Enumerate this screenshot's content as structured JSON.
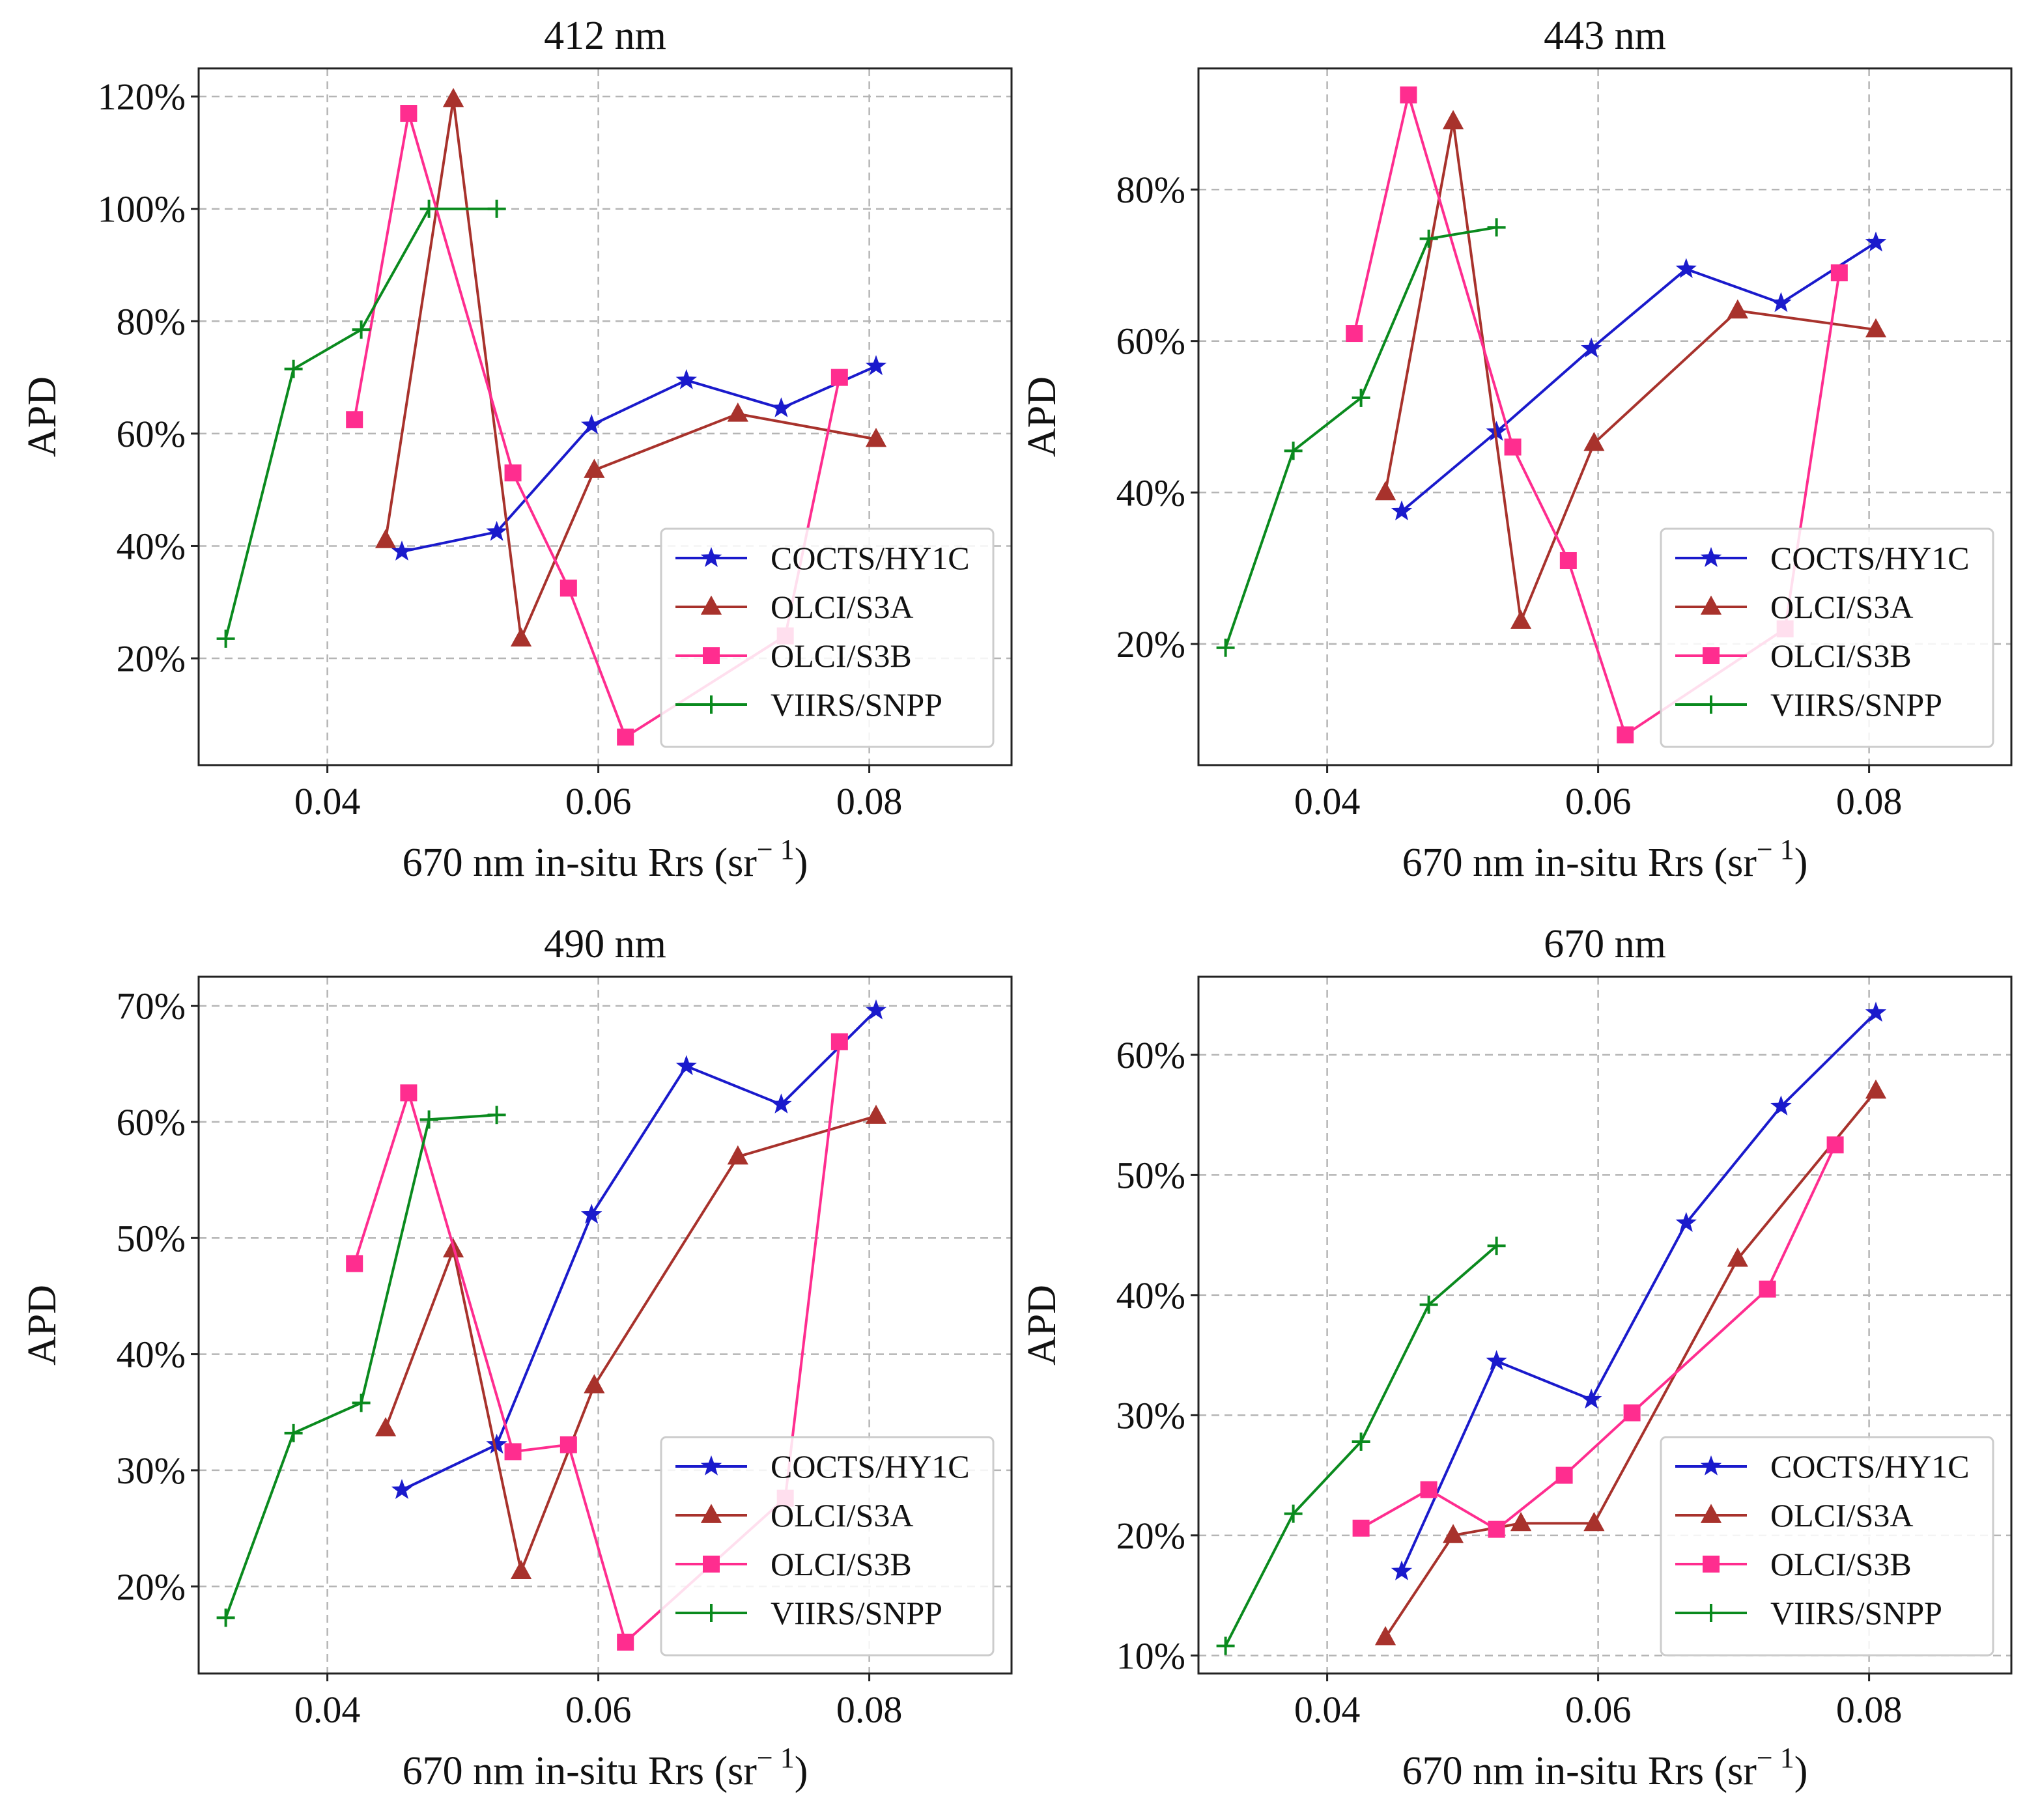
{
  "figure": {
    "shared": {
      "ylabel": "APD",
      "xlabel": "670 nm in-situ Rrs (sr",
      "xlabel_sup": "− 1",
      "xlabel_end": ")"
    }
  },
  "legend_order": [
    "COCTS/HY1C",
    "OLCI/S3A",
    "OLCI/S3B",
    "VIIRS/SNPP"
  ],
  "colors": {
    "COCTS/HY1C": "#1a1acc",
    "OLCI/S3A": "#a8322c",
    "OLCI/S3B": "#ff2d8f",
    "VIIRS/SNPP": "#0a8a1e"
  },
  "markers": {
    "COCTS/HY1C": "star",
    "OLCI/S3A": "triangle",
    "OLCI/S3B": "square",
    "VIIRS/SNPP": "plus"
  },
  "chart_data": [
    {
      "type": "line",
      "title": "412 nm",
      "xlabel": "670 nm in-situ Rrs (sr− 1)",
      "ylabel": "APD",
      "xlim": [
        0.0305,
        0.0905
      ],
      "ylim": [
        1.0,
        125.0
      ],
      "xticks": [
        0.04,
        0.06,
        0.08
      ],
      "xtick_labels": [
        "0.04",
        "0.06",
        "0.08"
      ],
      "yticks": [
        20,
        40,
        60,
        80,
        100,
        120
      ],
      "ytick_labels": [
        "20%",
        "40%",
        "60%",
        "80%",
        "100%",
        "120%"
      ],
      "legend": "lower-right",
      "series": [
        {
          "name": "COCTS/HY1C",
          "x": [
            0.0455,
            0.0525,
            0.0595,
            0.0665,
            0.0735,
            0.0805
          ],
          "y": [
            39,
            42.5,
            61.5,
            69.5,
            64.5,
            72
          ]
        },
        {
          "name": "OLCI/S3A",
          "x": [
            0.0443,
            0.0493,
            0.0543,
            0.0597,
            0.0703,
            0.0805
          ],
          "y": [
            41,
            119.5,
            23.5,
            53.5,
            63.5,
            59
          ]
        },
        {
          "name": "OLCI/S3B",
          "x": [
            0.042,
            0.046,
            0.0537,
            0.0578,
            0.062,
            0.0738,
            0.0778
          ],
          "y": [
            62.5,
            117,
            53,
            32.5,
            6,
            24,
            70
          ]
        },
        {
          "name": "VIIRS/SNPP",
          "x": [
            0.0325,
            0.0375,
            0.0425,
            0.0475,
            0.0525
          ],
          "y": [
            23.5,
            71.5,
            78.5,
            100,
            100
          ]
        }
      ]
    },
    {
      "type": "line",
      "title": "443 nm",
      "xlabel": "670 nm in-situ Rrs (sr− 1)",
      "ylabel": "APD",
      "xlim": [
        0.0305,
        0.0905
      ],
      "ylim": [
        4.0,
        96.0
      ],
      "xticks": [
        0.04,
        0.06,
        0.08
      ],
      "xtick_labels": [
        "0.04",
        "0.06",
        "0.08"
      ],
      "yticks": [
        20,
        40,
        60,
        80
      ],
      "ytick_labels": [
        "20%",
        "40%",
        "60%",
        "80%"
      ],
      "legend": "lower-right",
      "series": [
        {
          "name": "COCTS/HY1C",
          "x": [
            0.0455,
            0.0525,
            0.0595,
            0.0665,
            0.0735,
            0.0805
          ],
          "y": [
            37.5,
            48,
            59,
            69.5,
            65,
            73
          ]
        },
        {
          "name": "OLCI/S3A",
          "x": [
            0.0443,
            0.0493,
            0.0543,
            0.0597,
            0.0703,
            0.0805
          ],
          "y": [
            40,
            89,
            23,
            46.5,
            64,
            61.5
          ]
        },
        {
          "name": "OLCI/S3B",
          "x": [
            0.042,
            0.046,
            0.0537,
            0.0578,
            0.062,
            0.0738,
            0.0778
          ],
          "y": [
            61,
            92.5,
            46,
            31,
            8,
            22,
            69
          ]
        },
        {
          "name": "VIIRS/SNPP",
          "x": [
            0.0325,
            0.0375,
            0.0425,
            0.0475,
            0.0525
          ],
          "y": [
            19.5,
            45.5,
            52.5,
            73.5,
            75
          ]
        }
      ]
    },
    {
      "type": "line",
      "title": "490 nm",
      "xlabel": "670 nm in-situ Rrs (sr− 1)",
      "ylabel": "APD",
      "xlim": [
        0.0305,
        0.0905
      ],
      "ylim": [
        12.5,
        72.5
      ],
      "xticks": [
        0.04,
        0.06,
        0.08
      ],
      "xtick_labels": [
        "0.04",
        "0.06",
        "0.08"
      ],
      "yticks": [
        20,
        30,
        40,
        50,
        60,
        70
      ],
      "ytick_labels": [
        "20%",
        "30%",
        "40%",
        "50%",
        "60%",
        "70%"
      ],
      "legend": "lower-right",
      "series": [
        {
          "name": "COCTS/HY1C",
          "x": [
            0.0455,
            0.0525,
            0.0595,
            0.0665,
            0.0735,
            0.0805
          ],
          "y": [
            28.3,
            32.2,
            52,
            64.8,
            61.5,
            69.6
          ]
        },
        {
          "name": "OLCI/S3A",
          "x": [
            0.0443,
            0.0493,
            0.0543,
            0.0597,
            0.0703,
            0.0805
          ],
          "y": [
            33.6,
            49,
            21.3,
            37.3,
            57,
            60.5
          ]
        },
        {
          "name": "OLCI/S3B",
          "x": [
            0.042,
            0.046,
            0.0537,
            0.0578,
            0.062,
            0.0738,
            0.0778
          ],
          "y": [
            47.8,
            62.5,
            31.6,
            32.2,
            15.2,
            27.6,
            66.9
          ]
        },
        {
          "name": "VIIRS/SNPP",
          "x": [
            0.0325,
            0.0375,
            0.0425,
            0.0475,
            0.0525
          ],
          "y": [
            17.3,
            33.2,
            35.8,
            60.2,
            60.6
          ]
        }
      ]
    },
    {
      "type": "line",
      "title": "670 nm",
      "xlabel": "670 nm in-situ Rrs (sr− 1)",
      "ylabel": "APD",
      "xlim": [
        0.0305,
        0.0905
      ],
      "ylim": [
        8.5,
        66.5
      ],
      "xticks": [
        0.04,
        0.06,
        0.08
      ],
      "xtick_labels": [
        "0.04",
        "0.06",
        "0.08"
      ],
      "yticks": [
        10,
        20,
        30,
        40,
        50,
        60
      ],
      "ytick_labels": [
        "10%",
        "20%",
        "30%",
        "40%",
        "50%",
        "60%"
      ],
      "legend": "lower-right",
      "series": [
        {
          "name": "COCTS/HY1C",
          "x": [
            0.0455,
            0.0525,
            0.0595,
            0.0665,
            0.0735,
            0.0805
          ],
          "y": [
            17,
            34.5,
            31.3,
            46,
            55.7,
            63.5
          ]
        },
        {
          "name": "OLCI/S3A",
          "x": [
            0.0443,
            0.0493,
            0.0543,
            0.0597,
            0.0703,
            0.0805
          ],
          "y": [
            11.5,
            20,
            21,
            21,
            43,
            57
          ]
        },
        {
          "name": "OLCI/S3B",
          "x": [
            0.0425,
            0.0475,
            0.0525,
            0.0575,
            0.0625,
            0.0725,
            0.0775
          ],
          "y": [
            20.6,
            23.8,
            20.5,
            25,
            30.2,
            40.5,
            52.5
          ]
        },
        {
          "name": "VIIRS/SNPP",
          "x": [
            0.0325,
            0.0375,
            0.0425,
            0.0475,
            0.0525
          ],
          "y": [
            10.8,
            21.8,
            27.8,
            39.2,
            44.1
          ]
        }
      ]
    }
  ]
}
